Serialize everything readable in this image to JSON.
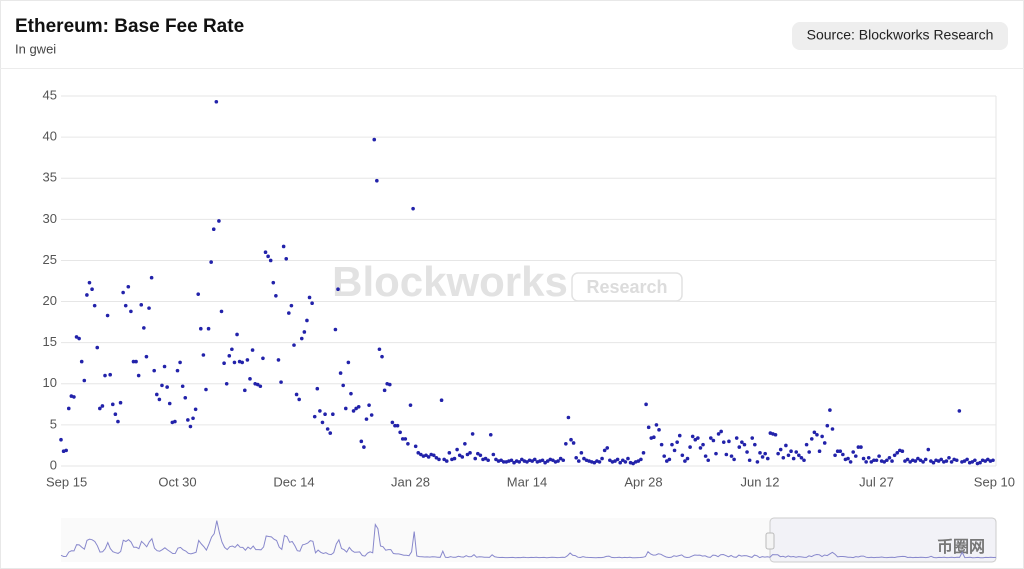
{
  "chart_data": {
    "type": "scatter",
    "title": "Ethereum: Base Fee Rate",
    "subtitle": "In gwei",
    "source": "Source: Blockworks Research",
    "watermark": [
      "Blockworks",
      "Research"
    ],
    "logo": "币圈网",
    "color": "#2222aa",
    "grid": true,
    "ylim": [
      0,
      45
    ],
    "yticks": [
      0,
      5,
      10,
      15,
      20,
      25,
      30,
      35,
      40,
      45
    ],
    "categories": [
      "Sep 15",
      null,
      null,
      null,
      null,
      null,
      null,
      null,
      null,
      null,
      null,
      null,
      null,
      null,
      null,
      null,
      null,
      null,
      null,
      null,
      null,
      null,
      null,
      null,
      null,
      null,
      null,
      null,
      null,
      null,
      null,
      null,
      null,
      null,
      null,
      null,
      null,
      null,
      null,
      null,
      null,
      null,
      null,
      null,
      null,
      "Oct 30",
      null,
      null,
      null,
      null,
      null,
      null,
      null,
      null,
      null,
      null,
      null,
      null,
      null,
      null,
      null,
      null,
      null,
      null,
      null,
      null,
      null,
      null,
      null,
      null,
      null,
      null,
      null,
      null,
      null,
      null,
      null,
      null,
      null,
      null,
      null,
      null,
      null,
      null,
      null,
      null,
      null,
      null,
      null,
      null,
      "Dec 14",
      null,
      null,
      null,
      null,
      null,
      null,
      null,
      null,
      null,
      null,
      null,
      null,
      null,
      null,
      null,
      null,
      null,
      null,
      null,
      null,
      null,
      null,
      null,
      null,
      null,
      null,
      null,
      null,
      null,
      null,
      null,
      null,
      null,
      null,
      null,
      null,
      null,
      null,
      null,
      null,
      null,
      null,
      null,
      null,
      "Jan 28",
      null,
      null,
      null,
      null,
      null,
      null,
      null,
      null,
      null,
      null,
      null,
      null,
      null,
      null,
      null,
      null,
      null,
      null,
      null,
      null,
      null,
      null,
      null,
      null,
      null,
      null,
      null,
      null,
      null,
      null,
      null,
      null,
      null,
      null,
      null,
      null,
      null,
      null,
      null,
      null,
      null,
      null,
      null,
      null,
      "Mar 14",
      null,
      null,
      null,
      null,
      null,
      null,
      null,
      null,
      null,
      null,
      null,
      null,
      null,
      null,
      null,
      null,
      null,
      null,
      null,
      null,
      null,
      null,
      null,
      null,
      null,
      null,
      null,
      null,
      null,
      null,
      null,
      null,
      null,
      null,
      null,
      null,
      null,
      null,
      null,
      null,
      null,
      null,
      null,
      null,
      "Apr 28",
      null,
      null,
      null,
      null,
      null,
      null,
      null,
      null,
      null,
      null,
      null,
      null,
      null,
      null,
      null,
      null,
      null,
      null,
      null,
      null,
      null,
      null,
      null,
      null,
      null,
      null,
      null,
      null,
      null,
      null,
      null,
      null,
      null,
      null,
      null,
      null,
      null,
      null,
      null,
      null,
      null,
      null,
      null,
      null,
      "Jun 12",
      null,
      null,
      null,
      null,
      null,
      null,
      null,
      null,
      null,
      null,
      null,
      null,
      null,
      null,
      null,
      null,
      null,
      null,
      null,
      null,
      null,
      null,
      null,
      null,
      null,
      null,
      null,
      null,
      null,
      null,
      null,
      null,
      null,
      null,
      null,
      null,
      null,
      null,
      null,
      null,
      null,
      null,
      null,
      null,
      "Jul 27",
      null,
      null,
      null,
      null,
      null,
      null,
      null,
      null,
      null,
      null,
      null,
      null,
      null,
      null,
      null,
      null,
      null,
      null,
      null,
      null,
      null,
      null,
      null,
      null,
      null,
      null,
      null,
      null,
      null,
      null,
      null,
      null,
      null,
      null,
      null,
      null,
      null,
      null,
      null,
      null,
      null,
      null,
      null,
      null,
      "Sep 10"
    ],
    "values": [
      3.2,
      1.8,
      1.9,
      7,
      8.5,
      8.4,
      15.7,
      15.5,
      12.7,
      10.4,
      20.8,
      22.3,
      21.5,
      19.5,
      14.4,
      7,
      7.3,
      11,
      18.3,
      11.1,
      7.5,
      6.3,
      5.4,
      7.7,
      21.1,
      19.5,
      21.8,
      18.8,
      12.7,
      12.7,
      11,
      19.6,
      16.8,
      13.3,
      19.2,
      22.9,
      11.6,
      8.7,
      8.1,
      9.8,
      12.1,
      9.6,
      7.6,
      5.3,
      5.4,
      11.6,
      12.6,
      9.7,
      8.3,
      5.6,
      4.8,
      5.8,
      6.9,
      20.9,
      16.7,
      13.5,
      9.3,
      16.7,
      24.8,
      28.8,
      44.3,
      29.8,
      18.8,
      12.5,
      10,
      13.4,
      14.2,
      12.6,
      16,
      12.7,
      12.6,
      9.2,
      12.9,
      10.6,
      14.1,
      10,
      9.9,
      9.7,
      13.1,
      26,
      25.5,
      25,
      22.3,
      20.7,
      12.9,
      10.2,
      26.7,
      25.2,
      18.6,
      19.5,
      14.7,
      8.7,
      8.1,
      15.5,
      16.3,
      17.7,
      20.5,
      19.8,
      6,
      9.4,
      6.7,
      5.3,
      6.3,
      4.5,
      4,
      6.3,
      16.6,
      21.5,
      11.3,
      9.8,
      7,
      12.6,
      8.8,
      6.7,
      7,
      7.2,
      3,
      2.3,
      5.7,
      7.4,
      6.2,
      39.7,
      34.7,
      14.2,
      13.3,
      9.2,
      10,
      9.9,
      5.3,
      4.9,
      4.9,
      4.1,
      3.3,
      3.3,
      2.7,
      7.4,
      31.3,
      2.4,
      1.6,
      1.4,
      1.2,
      1.3,
      1.1,
      1.4,
      1.3,
      1,
      0.8,
      8,
      0.8,
      0.6,
      1.6,
      0.8,
      0.9,
      2,
      1.3,
      1.1,
      2.7,
      1.4,
      1.6,
      3.9,
      0.9,
      1.5,
      1.3,
      0.8,
      0.9,
      0.7,
      3.8,
      1.4,
      0.8,
      0.6,
      0.7,
      0.5,
      0.5,
      0.6,
      0.7,
      0.4,
      0.6,
      0.5,
      0.8,
      0.6,
      0.5,
      0.7,
      0.6,
      0.8,
      0.5,
      0.6,
      0.7,
      0.4,
      0.6,
      0.8,
      0.7,
      0.5,
      0.6,
      0.9,
      0.7,
      2.7,
      5.9,
      3.2,
      2.8,
      1,
      0.6,
      1.6,
      0.9,
      0.7,
      0.6,
      0.5,
      0.4,
      0.6,
      0.5,
      0.9,
      1.9,
      2.2,
      0.7,
      0.5,
      0.6,
      0.8,
      0.4,
      0.7,
      0.5,
      0.9,
      0.4,
      0.3,
      0.5,
      0.6,
      0.8,
      1.6,
      7.5,
      4.7,
      3.4,
      3.5,
      5,
      4.4,
      2.6,
      1.2,
      0.6,
      0.8,
      2.6,
      1.9,
      2.9,
      3.7,
      1.3,
      0.6,
      0.9,
      2.3,
      3.6,
      3.2,
      3.4,
      2.2,
      2.6,
      1.2,
      0.7,
      3.4,
      3.1,
      1.5,
      3.9,
      4.2,
      2.9,
      1.4,
      3,
      1.2,
      0.8,
      3.4,
      2.3,
      2.9,
      2.6,
      1.7,
      0.7,
      3.4,
      2.6,
      0.5,
      1.6,
      1.1,
      1.5,
      0.9,
      4,
      3.9,
      3.8,
      1.5,
      2,
      1,
      2.5,
      1.3,
      1.8,
      0.9,
      1.7,
      1.3,
      1,
      0.7,
      2.6,
      1.7,
      3.3,
      4.1,
      3.8,
      1.8,
      3.6,
      2.8,
      4.9,
      6.8,
      4.5,
      1.3,
      1.8,
      1.8,
      1.4,
      0.8,
      0.9,
      0.5,
      1.7,
      1.2,
      2.3,
      2.3,
      0.9,
      0.5,
      1,
      0.5,
      0.7,
      0.7,
      1.2,
      0.6,
      0.5,
      0.7,
      1,
      0.6,
      1.3,
      1.6,
      1.9,
      1.8,
      0.6,
      0.8,
      0.5,
      0.7,
      0.6,
      0.9,
      0.7,
      0.5,
      0.8,
      2,
      0.6,
      0.4,
      0.7,
      0.6,
      0.8,
      0.5,
      0.6,
      1,
      0.5,
      0.8,
      0.7,
      6.7,
      0.5,
      0.6,
      0.8,
      0.4,
      0.5,
      0.7,
      0.3,
      0.4,
      0.7,
      0.6,
      0.8,
      0.6,
      0.7
    ]
  }
}
